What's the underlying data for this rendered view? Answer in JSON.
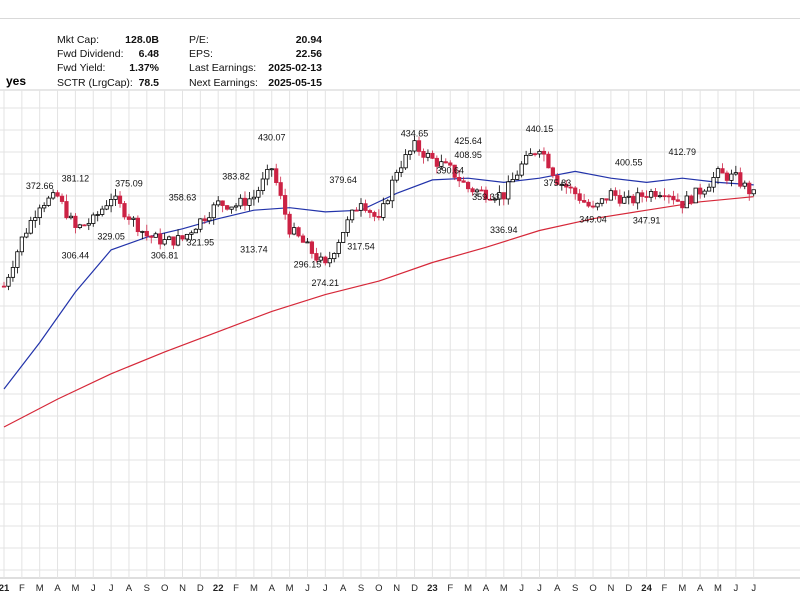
{
  "header": {
    "ticker_suffix": "yes"
  },
  "stats": {
    "left": [
      {
        "label": "Mkt Cap:",
        "value": "128.0B"
      },
      {
        "label": "Fwd Dividend:",
        "value": "6.48"
      },
      {
        "label": "Fwd Yield:",
        "value": "1.37%"
      },
      {
        "label": "SCTR (LrgCap):",
        "value": "78.5"
      }
    ],
    "right": [
      {
        "label": "P/E:",
        "value": "20.94"
      },
      {
        "label": "EPS:",
        "value": "22.56"
      },
      {
        "label": "Last Earnings:",
        "value": "2025-02-13"
      },
      {
        "label": "Next Earnings:",
        "value": "2025-05-15"
      }
    ]
  },
  "colors": {
    "up_candle": "#000000",
    "down_candle": "#cc2244",
    "ma_short": "#2233aa",
    "ma_long": "#d62839",
    "grid": "#e3e3e3"
  },
  "chart_data": {
    "type": "line",
    "subtype": "candlestick",
    "title": "",
    "xlabel": "",
    "ylabel": "",
    "grid": true,
    "x_ticks": [
      "21",
      "F",
      "M",
      "A",
      "M",
      "J",
      "J",
      "A",
      "S",
      "O",
      "N",
      "D",
      "22",
      "F",
      "M",
      "A",
      "M",
      "J",
      "J",
      "A",
      "S",
      "O",
      "N",
      "D",
      "23",
      "F",
      "M",
      "A",
      "M",
      "J",
      "J",
      "A",
      "S",
      "O",
      "N",
      "D",
      "24",
      "F",
      "M",
      "A",
      "M",
      "J",
      "J"
    ],
    "price_series": {
      "name": "",
      "months": [
        "2021-01",
        "2021-02",
        "2021-03",
        "2021-04",
        "2021-05",
        "2021-06",
        "2021-07",
        "2021-08",
        "2021-09",
        "2021-10",
        "2021-11",
        "2021-12",
        "2022-01",
        "2022-02",
        "2022-03",
        "2022-04",
        "2022-05",
        "2022-06",
        "2022-07",
        "2022-08",
        "2022-09",
        "2022-10",
        "2022-11",
        "2022-12",
        "2023-01",
        "2023-02",
        "2023-03",
        "2023-04",
        "2023-05",
        "2023-06",
        "2023-07",
        "2023-08",
        "2023-09",
        "2023-10",
        "2023-11",
        "2023-12",
        "2024-01",
        "2024-02",
        "2024-03",
        "2024-04",
        "2024-05",
        "2024-06",
        "2024-07"
      ],
      "values": [
        262,
        318,
        360,
        368,
        330,
        340,
        368,
        345,
        322,
        315,
        318,
        340,
        360,
        358,
        368,
        402,
        330,
        308,
        285,
        328,
        365,
        338,
        400,
        428,
        412,
        400,
        378,
        372,
        370,
        405,
        428,
        388,
        372,
        352,
        372,
        362,
        372,
        376,
        360,
        375,
        395,
        390,
        370
      ]
    },
    "annotations": [
      {
        "label": "372.66",
        "x": "2021-03",
        "y": 372.66
      },
      {
        "label": "381.12",
        "x": "2021-05",
        "y": 381.12
      },
      {
        "label": "306.44",
        "x": "2021-05",
        "y": 306.44
      },
      {
        "label": "329.05",
        "x": "2021-07",
        "y": 329.05
      },
      {
        "label": "375.09",
        "x": "2021-08",
        "y": 375.09
      },
      {
        "label": "306.81",
        "x": "2021-10",
        "y": 306.81
      },
      {
        "label": "358.63",
        "x": "2021-11",
        "y": 358.63
      },
      {
        "label": "321.95",
        "x": "2021-12",
        "y": 321.95
      },
      {
        "label": "383.82",
        "x": "2022-02",
        "y": 383.82
      },
      {
        "label": "313.74",
        "x": "2022-03",
        "y": 313.74
      },
      {
        "label": "430.07",
        "x": "2022-04",
        "y": 430.07
      },
      {
        "label": "296.15",
        "x": "2022-06",
        "y": 296.15
      },
      {
        "label": "274.21",
        "x": "2022-07",
        "y": 274.21
      },
      {
        "label": "379.64",
        "x": "2022-08",
        "y": 379.64
      },
      {
        "label": "317.54",
        "x": "2022-09",
        "y": 317.54
      },
      {
        "label": "434.65",
        "x": "2022-12",
        "y": 434.65
      },
      {
        "label": "390.64",
        "x": "2023-02",
        "y": 390.64
      },
      {
        "label": "425.64",
        "x": "2023-03",
        "y": 425.64
      },
      {
        "label": "408.95",
        "x": "2023-03",
        "y": 408.95
      },
      {
        "label": "359.33",
        "x": "2023-04",
        "y": 359.33
      },
      {
        "label": "336.94",
        "x": "2023-05",
        "y": 336.94
      },
      {
        "label": "440.15",
        "x": "2023-07",
        "y": 440.15
      },
      {
        "label": "375.83",
        "x": "2023-08",
        "y": 375.83
      },
      {
        "label": "349.04",
        "x": "2023-10",
        "y": 349.04
      },
      {
        "label": "400.55",
        "x": "2023-12",
        "y": 400.55
      },
      {
        "label": "347.91",
        "x": "2024-01",
        "y": 347.91
      },
      {
        "label": "412.79",
        "x": "2024-03",
        "y": 412.79
      }
    ],
    "moving_averages": [
      {
        "name": "",
        "color": "#2233aa",
        "months": [
          "2021-01",
          "2021-03",
          "2021-05",
          "2021-07",
          "2021-09",
          "2021-11",
          "2022-01",
          "2022-03",
          "2022-05",
          "2022-07",
          "2022-09",
          "2022-11",
          "2023-01",
          "2023-03",
          "2023-05",
          "2023-07",
          "2023-09",
          "2023-11",
          "2024-01",
          "2024-03",
          "2024-05",
          "2024-07"
        ],
        "values": [
          140,
          195,
          255,
          305,
          320,
          330,
          342,
          352,
          355,
          350,
          352,
          372,
          388,
          390,
          385,
          390,
          398,
          390,
          385,
          390,
          385,
          382
        ]
      },
      {
        "name": "",
        "color": "#d62839",
        "months": [
          "2021-01",
          "2021-04",
          "2021-07",
          "2021-10",
          "2022-01",
          "2022-04",
          "2022-07",
          "2022-10",
          "2023-01",
          "2023-04",
          "2023-07",
          "2023-10",
          "2024-01",
          "2024-04",
          "2024-07"
        ],
        "values": [
          95,
          128,
          158,
          184,
          208,
          232,
          252,
          268,
          290,
          308,
          328,
          342,
          352,
          362,
          368
        ]
      }
    ]
  }
}
